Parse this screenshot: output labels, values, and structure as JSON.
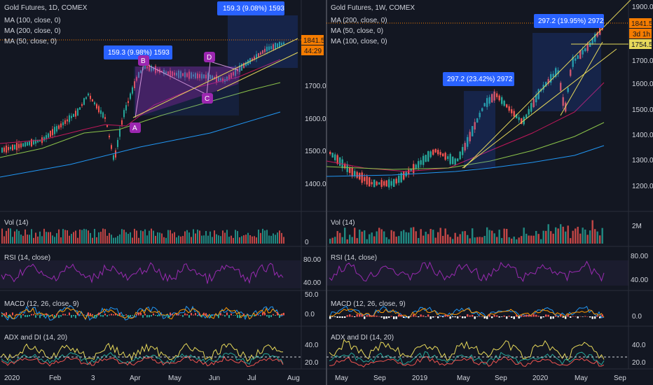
{
  "left": {
    "title": "Gold Futures, 1D, COMEX",
    "ma_lines": [
      "MA (100, close, 0)",
      "MA (200, close, 0)",
      "MA (50, close, 0)"
    ],
    "price_ticks": [
      "1700.0",
      "1600.0",
      "1500.0",
      "1400.0"
    ],
    "price_tag": "1841.5",
    "countdown": "44:29",
    "measure_top": "159.3 (9.08%) 1593",
    "measure_mid": "159.3 (9.98%) 1593",
    "pattern_points": [
      "A",
      "B",
      "C",
      "D"
    ],
    "vol_label": "Vol (14)",
    "vol_tick": "0",
    "rsi_label": "RSI (14, close)",
    "rsi_ticks": [
      "80.00",
      "40.00"
    ],
    "macd_label": "MACD (12, 26, close, 9)",
    "macd_ticks": [
      "50.0",
      "0.0"
    ],
    "adx_label": "ADX and DI (14, 20)",
    "adx_ticks": [
      "40.0",
      "20.0"
    ],
    "time_labels": [
      "2020",
      "Feb",
      "3",
      "Apr",
      "May",
      "Jun",
      "Jul",
      "Aug"
    ]
  },
  "right": {
    "title": "Gold Futures, 1W, COMEX",
    "ma_lines": [
      "MA (200, close, 0)",
      "MA (50, close, 0)",
      "MA (100, close, 0)"
    ],
    "price_ticks": [
      "1900.0",
      "1800.0",
      "1700.0",
      "1600.0",
      "1500.0",
      "1400.0",
      "1300.0",
      "1200.0"
    ],
    "price_tag": "1841.5",
    "countdown": "3d 1h",
    "level_tag": "1754.5",
    "measure_top": "297.2 (19.95%) 2972",
    "measure_mid": "297.2 (23.42%) 2972",
    "vol_label": "Vol (14)",
    "vol_tick": "2M",
    "rsi_label": "RSI (14, close)",
    "rsi_ticks": [
      "80.00",
      "40.00"
    ],
    "macd_label": "MACD (12, 26, close, 9)",
    "macd_ticks": [
      "0.0"
    ],
    "adx_label": "ADX and DI (14, 20)",
    "adx_ticks": [
      "40.0",
      "20.0"
    ],
    "time_labels": [
      "May",
      "Sep",
      "2019",
      "May",
      "Sep",
      "2020",
      "May",
      "Sep"
    ]
  },
  "colors": {
    "bg": "#131722",
    "up": "#26a69a",
    "down": "#ef5350",
    "ma_pink": "#c2185b",
    "ma_green": "#8bc34a",
    "ma_blue": "#2196f3",
    "rsi": "#9c27b0",
    "macd": "#2196f3",
    "signal": "#ff9800",
    "measure": "#2962ff",
    "pattern": "#9c27b0",
    "tag": "#f57c00"
  },
  "chart_data": [
    {
      "type": "line",
      "title": "Gold Futures, 1D, COMEX",
      "ylim": [
        1350,
        1900
      ],
      "x": [
        "2020",
        "Feb",
        "3",
        "Apr",
        "May",
        "Jun",
        "Jul",
        "Aug"
      ],
      "series": [
        {
          "name": "MA (100, close, 0)",
          "values": [
            1480,
            1520,
            1560,
            1600,
            1640,
            1680,
            1710,
            1730
          ]
        },
        {
          "name": "MA (200, close, 0)",
          "values": [
            1390,
            1420,
            1450,
            1490,
            1530,
            1560,
            1590,
            1610
          ]
        },
        {
          "name": "MA (50, close, 0)",
          "values": [
            1520,
            1560,
            1580,
            1630,
            1690,
            1720,
            1760,
            1800
          ]
        }
      ]
    },
    {
      "type": "line",
      "title": "Gold Futures, 1W, COMEX",
      "ylim": [
        1150,
        1950
      ],
      "x": [
        "May",
        "Sep",
        "2019",
        "May",
        "Sep",
        "2020",
        "May",
        "Sep"
      ],
      "series": [
        {
          "name": "MA (200, close, 0)",
          "values": [
            1250,
            1255,
            1260,
            1265,
            1280,
            1300,
            1330,
            1355
          ]
        },
        {
          "name": "MA (50, close, 0)",
          "values": [
            1290,
            1270,
            1265,
            1285,
            1350,
            1430,
            1540,
            1610
          ]
        },
        {
          "name": "MA (100, close, 0)",
          "values": [
            1280,
            1270,
            1260,
            1265,
            1290,
            1340,
            1410,
            1450
          ]
        }
      ]
    }
  ]
}
